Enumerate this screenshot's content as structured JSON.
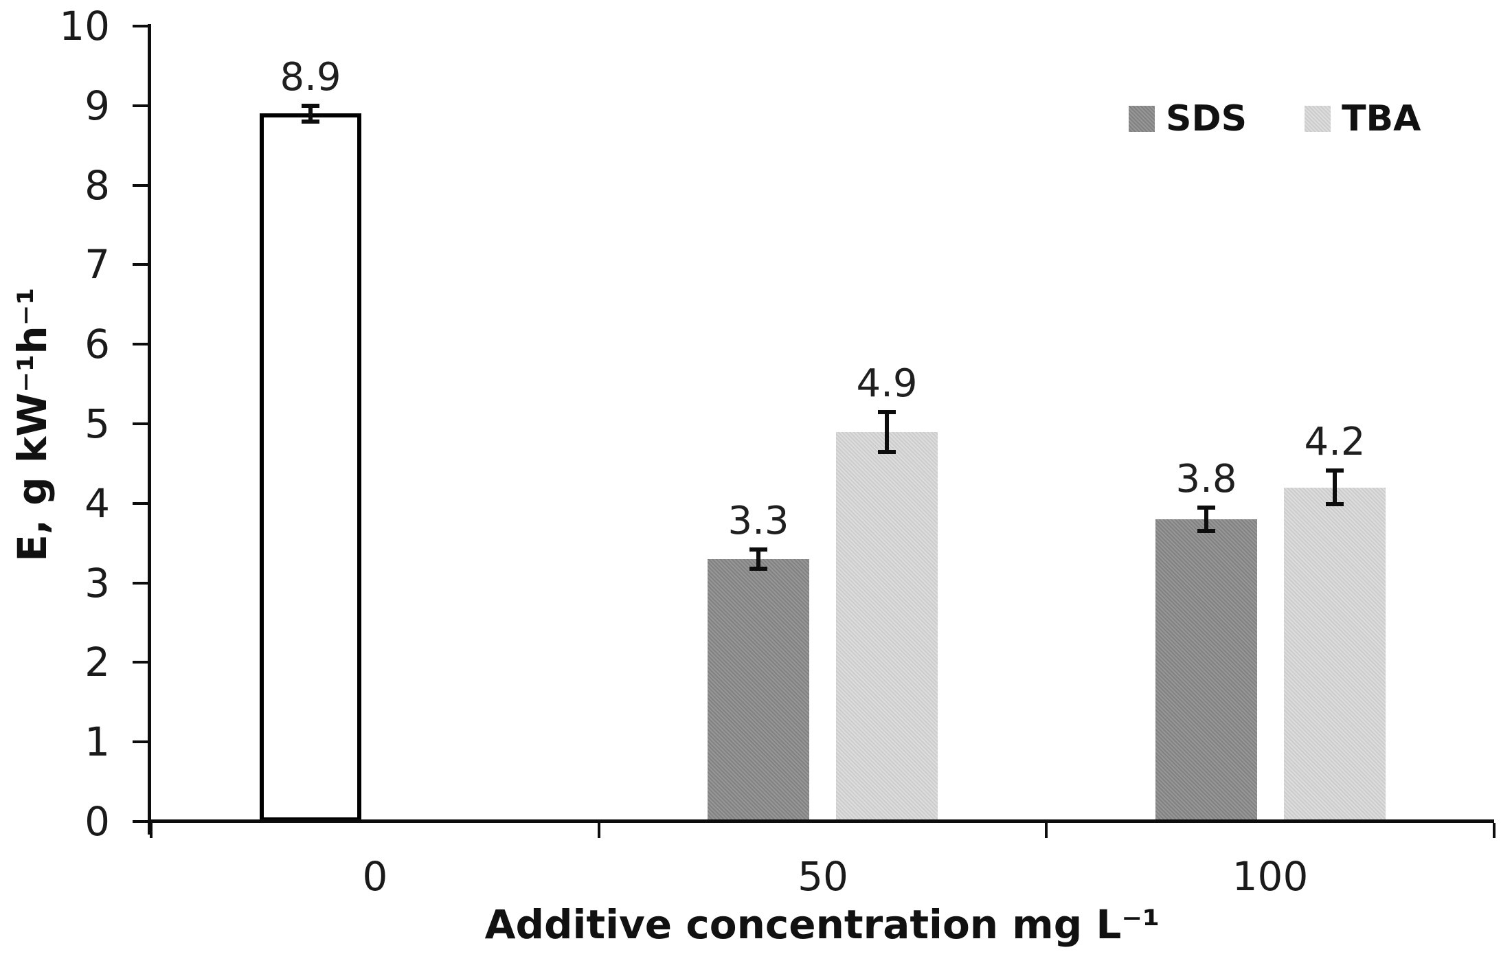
{
  "colors": {
    "background": "#ffffff",
    "axis": "#000000",
    "text": "#1a1a1a",
    "error_bar": "#0d0d0d",
    "control_fill": "#ffffff",
    "control_border": "#000000",
    "sds_fill": "#8b8b8b",
    "tba_fill": "#d3d3d3"
  },
  "chart_data": {
    "type": "bar",
    "title": "",
    "xlabel": "Additive concentration mg L⁻¹",
    "ylabel": "E, g kW⁻¹h⁻¹",
    "ylim": [
      0,
      10
    ],
    "yticks": [
      "0",
      "1",
      "2",
      "3",
      "4",
      "5",
      "6",
      "7",
      "8",
      "9",
      "10"
    ],
    "categories": [
      "0",
      "50",
      "100"
    ],
    "grid": false,
    "legend_position": "top-right",
    "series": [
      {
        "id": "control",
        "name": "",
        "show_in_legend": false,
        "slot": "left",
        "fill": "#ffffff",
        "border_color": "#000000",
        "values": [
          8.9,
          null,
          null
        ],
        "labels": [
          "8.9",
          null,
          null
        ],
        "errors": [
          0.1,
          null,
          null
        ]
      },
      {
        "id": "sds",
        "name": "SDS",
        "show_in_legend": true,
        "slot": "left",
        "fill": "#8b8b8b",
        "border_color": null,
        "values": [
          null,
          3.3,
          3.8
        ],
        "labels": [
          null,
          "3.3",
          "3.8"
        ],
        "errors": [
          null,
          0.12,
          0.15
        ]
      },
      {
        "id": "tba",
        "name": "TBA",
        "show_in_legend": true,
        "slot": "right",
        "fill": "#d3d3d3",
        "border_color": null,
        "values": [
          null,
          4.9,
          4.2
        ],
        "labels": [
          null,
          "4.9",
          "4.2"
        ],
        "errors": [
          null,
          0.25,
          0.21
        ]
      }
    ]
  }
}
